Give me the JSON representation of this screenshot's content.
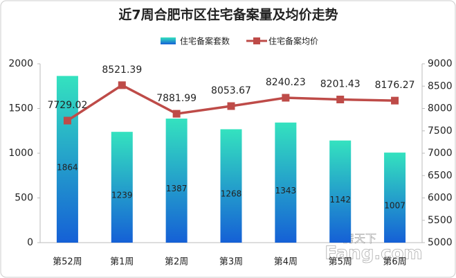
{
  "chart_data": {
    "type": "combo",
    "title": "近7周合肥市区住宅备案量及均价走势",
    "categories": [
      "第52周",
      "第1周",
      "第2周",
      "第3周",
      "第4周",
      "第5周",
      "第6周"
    ],
    "series": [
      {
        "name": "住宅备案套数",
        "type": "bar",
        "color": "#1560d6",
        "values": [
          1864,
          1239,
          1387,
          1268,
          1343,
          1142,
          1007
        ]
      },
      {
        "name": "住宅备案均价",
        "type": "line",
        "axis": "y2",
        "color": "#be4b48",
        "values": [
          7729.02,
          8521.39,
          7881.99,
          8053.67,
          8240.23,
          8201.43,
          8176.27
        ]
      }
    ],
    "ylim": [
      0,
      2000
    ],
    "yticks": [
      0,
      500,
      1000,
      1500,
      2000
    ],
    "y2lim": [
      5000,
      9000
    ],
    "y2ticks": [
      5000,
      5500,
      6000,
      6500,
      7000,
      7500,
      8000,
      8500,
      9000
    ],
    "grid": false,
    "legend": "top",
    "watermark": [
      "房天下",
      "Fang.com"
    ]
  }
}
